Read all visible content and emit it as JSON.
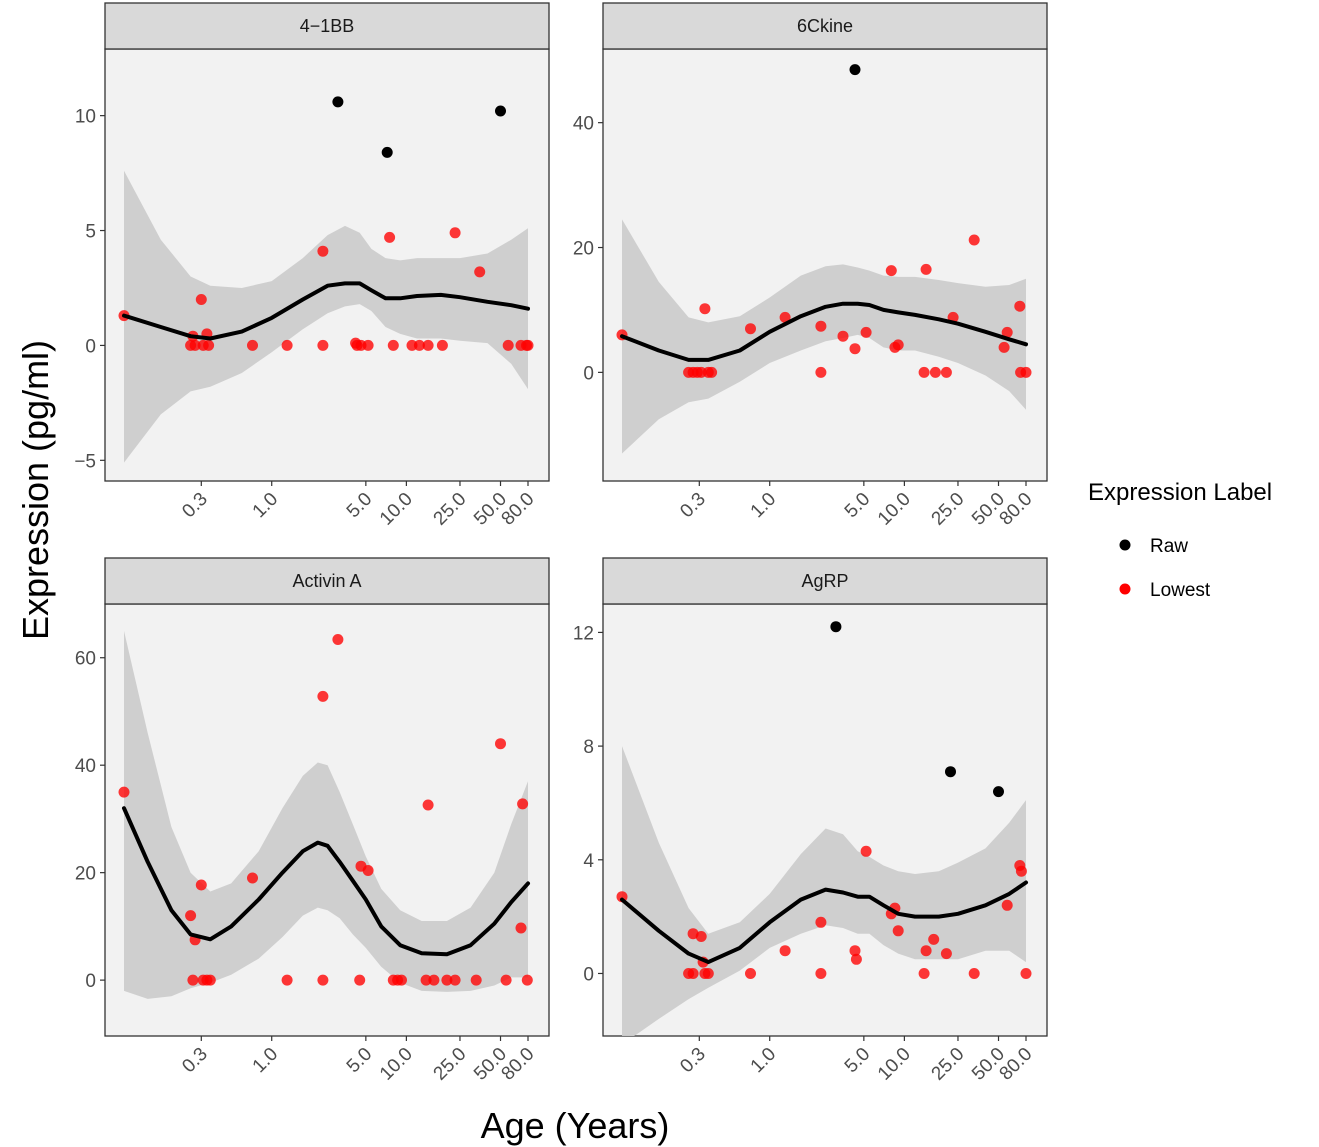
{
  "chart_data": {
    "type": "scatter",
    "xlabel": "Age (Years)",
    "ylabel": "Expression (pg/ml)",
    "x_scale": "log",
    "x_ticks": [
      0.3,
      1.0,
      5.0,
      10.0,
      25.0,
      50.0,
      80.0
    ],
    "x_tick_labels": [
      "0.3",
      "1.0",
      "5.0",
      "10.0",
      "25.0",
      "50.0",
      "80.0"
    ],
    "legend": {
      "title": "Expression Label",
      "placement": "right",
      "entries": [
        {
          "label": "Raw",
          "color": "#000000"
        },
        {
          "label": "Lowest",
          "color": "#ff0000"
        }
      ]
    },
    "colors": {
      "Raw": "#000000",
      "Lowest": "#ff0000",
      "smooth": "#000000",
      "ribbon": "#cccccc",
      "panel": "#f2f2f2",
      "strip": "#d9d9d9"
    },
    "panels": [
      {
        "title": "4−1BB",
        "ylim": [
          -5.9,
          12.9
        ],
        "y_ticks": [
          -5,
          0,
          5,
          10
        ],
        "y_tick_labels": [
          "−5",
          "0",
          "5",
          "10"
        ],
        "raw_points": [
          [
            3.1,
            10.6
          ],
          [
            7.2,
            8.4
          ],
          [
            50.0,
            10.2
          ]
        ],
        "lowest_points": [
          [
            0.08,
            1.3
          ],
          [
            0.3,
            2.0
          ],
          [
            0.26,
            0.4
          ],
          [
            0.33,
            0.5
          ],
          [
            2.4,
            4.1
          ],
          [
            7.5,
            4.7
          ],
          [
            23,
            4.9
          ],
          [
            35,
            3.2
          ],
          [
            0.25,
            0.0
          ],
          [
            0.27,
            0.0
          ],
          [
            0.31,
            0.0
          ],
          [
            0.34,
            0.0
          ],
          [
            0.72,
            0.0
          ],
          [
            1.3,
            0.0
          ],
          [
            2.4,
            0.0
          ],
          [
            4.3,
            0.0
          ],
          [
            4.6,
            0.0
          ],
          [
            5.2,
            0.0
          ],
          [
            8.0,
            0.0
          ],
          [
            11.0,
            0.0
          ],
          [
            12.5,
            0.0
          ],
          [
            14.5,
            0.0
          ],
          [
            18.5,
            0.0
          ],
          [
            57,
            0.0
          ],
          [
            71,
            0.0
          ],
          [
            78,
            0.0
          ],
          [
            80,
            0.0
          ],
          [
            4.2,
            0.1
          ]
        ],
        "smooth_x": [
          0.08,
          0.15,
          0.25,
          0.35,
          0.6,
          1.0,
          1.7,
          2.6,
          3.5,
          4.5,
          5.5,
          7.0,
          9.0,
          12,
          18,
          25,
          40,
          60,
          80
        ],
        "smooth_y": [
          1.3,
          0.8,
          0.4,
          0.3,
          0.6,
          1.2,
          2.0,
          2.6,
          2.7,
          2.7,
          2.4,
          2.05,
          2.05,
          2.15,
          2.2,
          2.1,
          1.9,
          1.75,
          1.6
        ],
        "band_lower": [
          -5.1,
          -3.0,
          -2.0,
          -1.8,
          -1.2,
          -0.3,
          0.7,
          1.4,
          1.7,
          1.8,
          1.5,
          0.8,
          0.5,
          0.3,
          0.3,
          0.2,
          0.1,
          -0.8,
          -1.9
        ],
        "band_upper": [
          7.6,
          4.6,
          3.0,
          2.6,
          2.5,
          2.8,
          3.8,
          4.8,
          5.2,
          4.9,
          4.2,
          3.8,
          3.7,
          3.8,
          3.8,
          3.8,
          4.0,
          4.6,
          5.1
        ]
      },
      {
        "title": "6Ckine",
        "ylim": [
          -17.4,
          51.8
        ],
        "y_ticks": [
          0,
          20,
          40
        ],
        "y_tick_labels": [
          "0",
          "20",
          "40"
        ],
        "raw_points": [
          [
            4.3,
            48.5
          ]
        ],
        "lowest_points": [
          [
            0.08,
            6.0
          ],
          [
            0.33,
            10.2
          ],
          [
            0.72,
            7.0
          ],
          [
            1.3,
            8.8
          ],
          [
            2.4,
            7.4
          ],
          [
            3.5,
            5.8
          ],
          [
            4.3,
            3.8
          ],
          [
            5.2,
            6.4
          ],
          [
            8.0,
            16.3
          ],
          [
            8.5,
            4.0
          ],
          [
            9.0,
            4.4
          ],
          [
            14.5,
            16.5
          ],
          [
            23,
            8.8
          ],
          [
            33,
            21.2
          ],
          [
            55,
            4.0
          ],
          [
            58,
            6.4
          ],
          [
            72,
            10.6
          ],
          [
            0.25,
            0.0
          ],
          [
            0.27,
            0.0
          ],
          [
            0.29,
            0.0
          ],
          [
            0.31,
            0.0
          ],
          [
            0.35,
            0.0
          ],
          [
            0.37,
            0.0
          ],
          [
            2.4,
            0.0
          ],
          [
            14,
            0.0
          ],
          [
            17,
            0.0
          ],
          [
            20.5,
            0.0
          ],
          [
            73,
            0.0
          ],
          [
            80,
            0.0
          ]
        ],
        "smooth_x": [
          0.08,
          0.15,
          0.25,
          0.35,
          0.6,
          1.0,
          1.7,
          2.6,
          3.5,
          4.5,
          5.5,
          7.0,
          9.0,
          12,
          18,
          25,
          40,
          60,
          80
        ],
        "smooth_y": [
          5.8,
          3.5,
          2.0,
          2.0,
          3.5,
          6.5,
          9.0,
          10.5,
          11.0,
          11.0,
          10.8,
          10.0,
          9.6,
          9.2,
          8.5,
          7.8,
          6.5,
          5.3,
          4.5
        ],
        "band_lower": [
          -13.0,
          -7.5,
          -4.8,
          -4.2,
          -1.5,
          1.5,
          3.5,
          5.0,
          5.5,
          6.0,
          5.5,
          4.0,
          3.5,
          3.5,
          2.5,
          1.5,
          -0.5,
          -3.0,
          -6.0
        ],
        "band_upper": [
          24.5,
          14.5,
          8.8,
          8.0,
          9.0,
          12.0,
          15.5,
          17.0,
          17.3,
          16.8,
          16.3,
          15.5,
          15.3,
          15.3,
          14.8,
          14.3,
          13.7,
          14.0,
          15.0
        ]
      },
      {
        "title": "Activin A",
        "ylim": [
          -10.4,
          70.0
        ],
        "y_ticks": [
          0,
          20,
          40,
          60
        ],
        "y_tick_labels": [
          "0",
          "20",
          "40",
          "60"
        ],
        "raw_points": [],
        "lowest_points": [
          [
            0.08,
            35.0
          ],
          [
            0.25,
            12.0
          ],
          [
            0.27,
            7.5
          ],
          [
            0.3,
            17.7
          ],
          [
            0.72,
            19.0
          ],
          [
            2.4,
            52.8
          ],
          [
            3.1,
            63.4
          ],
          [
            4.6,
            21.2
          ],
          [
            5.2,
            20.4
          ],
          [
            14.5,
            32.6
          ],
          [
            50,
            44.0
          ],
          [
            71,
            9.7
          ],
          [
            73,
            32.8
          ],
          [
            0.26,
            0.0
          ],
          [
            0.31,
            0.0
          ],
          [
            0.33,
            0.0
          ],
          [
            0.35,
            0.0
          ],
          [
            1.3,
            0.0
          ],
          [
            2.4,
            0.0
          ],
          [
            4.5,
            0.0
          ],
          [
            8.0,
            0.0
          ],
          [
            8.6,
            0.0
          ],
          [
            9.2,
            0.0
          ],
          [
            14,
            0.0
          ],
          [
            16,
            0.0
          ],
          [
            20,
            0.0
          ],
          [
            23,
            0.0
          ],
          [
            33,
            0.0
          ],
          [
            55,
            0.0
          ],
          [
            79,
            0.0
          ]
        ],
        "smooth_x": [
          0.08,
          0.12,
          0.18,
          0.25,
          0.35,
          0.5,
          0.8,
          1.2,
          1.7,
          2.2,
          2.6,
          3.2,
          4.0,
          5.0,
          6.5,
          9,
          13,
          20,
          30,
          45,
          60,
          80
        ],
        "smooth_y": [
          32.0,
          22.0,
          13.0,
          8.5,
          7.6,
          10.0,
          15.0,
          20.0,
          24.0,
          25.6,
          25.0,
          22.0,
          18.5,
          15.0,
          10.0,
          6.5,
          5.0,
          4.8,
          6.5,
          10.5,
          14.5,
          18.0
        ],
        "band_lower": [
          -2.0,
          -3.5,
          -3.0,
          -1.5,
          -0.5,
          1.0,
          4.0,
          8.0,
          12.0,
          13.5,
          13.0,
          11.5,
          8.5,
          6.0,
          2.5,
          -0.5,
          -2.0,
          -2.2,
          -2.0,
          -1.0,
          0.5,
          0.5
        ],
        "band_upper": [
          65.0,
          46.0,
          28.5,
          20.0,
          16.5,
          18.0,
          24.0,
          32.0,
          38.0,
          40.5,
          40.0,
          35.0,
          29.0,
          23.0,
          17.0,
          13.0,
          11.0,
          11.0,
          13.5,
          20.0,
          29.0,
          37.0
        ]
      },
      {
        "title": "AgRP",
        "ylim": [
          -2.2,
          13.0
        ],
        "y_ticks": [
          0,
          4,
          8,
          12
        ],
        "y_tick_labels": [
          "0",
          "4",
          "8",
          "12"
        ],
        "raw_points": [
          [
            3.1,
            12.2
          ],
          [
            22,
            7.1
          ],
          [
            50,
            6.4
          ]
        ],
        "lowest_points": [
          [
            0.08,
            2.7
          ],
          [
            0.27,
            1.4
          ],
          [
            0.31,
            1.3
          ],
          [
            0.32,
            0.4
          ],
          [
            1.3,
            0.8
          ],
          [
            2.4,
            1.8
          ],
          [
            4.3,
            0.8
          ],
          [
            5.2,
            4.3
          ],
          [
            8.0,
            2.1
          ],
          [
            8.5,
            2.3
          ],
          [
            9.0,
            1.5
          ],
          [
            14.5,
            0.8
          ],
          [
            16.5,
            1.2
          ],
          [
            20.5,
            0.7
          ],
          [
            58,
            2.4
          ],
          [
            72,
            3.8
          ],
          [
            74,
            3.6
          ],
          [
            0.25,
            0.0
          ],
          [
            0.27,
            0.0
          ],
          [
            0.33,
            0.0
          ],
          [
            0.35,
            0.0
          ],
          [
            0.72,
            0.0
          ],
          [
            2.4,
            0.0
          ],
          [
            4.4,
            0.5
          ],
          [
            14,
            0.0
          ],
          [
            33,
            0.0
          ],
          [
            80,
            0.0
          ]
        ],
        "smooth_x": [
          0.08,
          0.15,
          0.25,
          0.35,
          0.6,
          1.0,
          1.7,
          2.6,
          3.5,
          4.5,
          5.5,
          7.0,
          9.0,
          12,
          18,
          25,
          40,
          60,
          80
        ],
        "smooth_y": [
          2.6,
          1.5,
          0.7,
          0.4,
          0.9,
          1.8,
          2.6,
          2.95,
          2.85,
          2.7,
          2.7,
          2.4,
          2.1,
          2.0,
          2.0,
          2.1,
          2.4,
          2.8,
          3.2
        ],
        "band_lower": [
          -2.5,
          -1.6,
          -0.9,
          -0.5,
          0.1,
          0.9,
          1.4,
          1.7,
          1.6,
          1.4,
          1.4,
          1.0,
          0.7,
          0.5,
          0.5,
          0.5,
          0.8,
          0.8,
          0.4
        ],
        "band_upper": [
          8.0,
          4.6,
          2.3,
          1.4,
          1.8,
          2.8,
          4.2,
          5.1,
          4.9,
          4.3,
          4.1,
          3.8,
          3.6,
          3.5,
          3.6,
          3.9,
          4.4,
          5.3,
          6.1
        ]
      }
    ]
  }
}
